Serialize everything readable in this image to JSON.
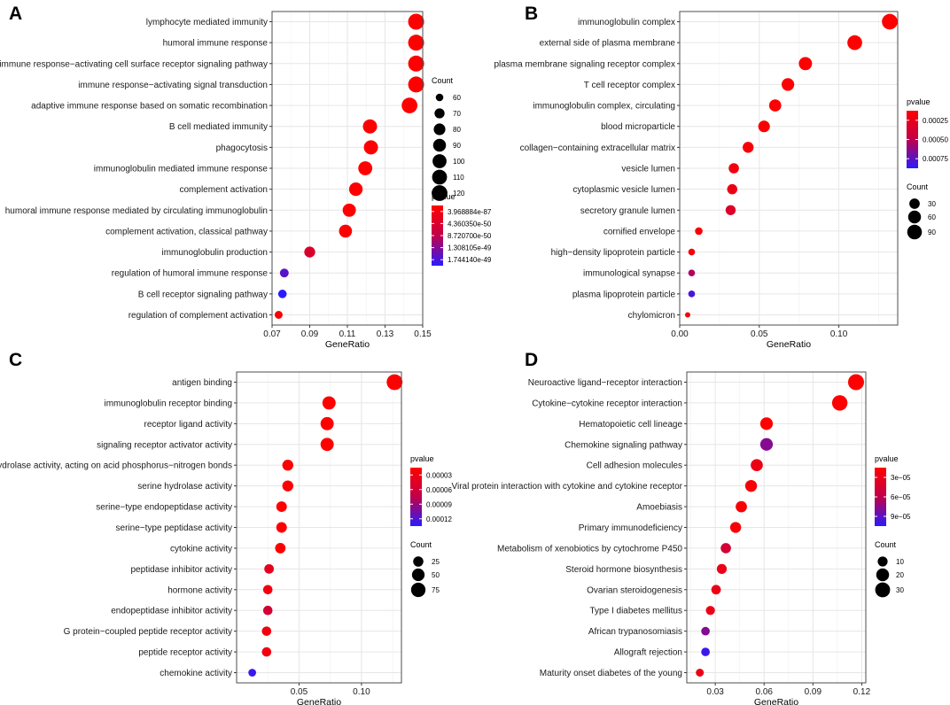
{
  "colors": {
    "low_p": "#ff0000",
    "high_p": "#0000ff",
    "grid_major": "#e6e6e6",
    "grid_minor": "#f3f3f3",
    "frame": "#4d4d4d"
  },
  "chart_data": [
    {
      "panel": "A",
      "type": "scatter",
      "xlabel": "GeneRatio",
      "xlim": [
        0.07,
        0.15
      ],
      "xticks": [
        0.07,
        0.09,
        0.11,
        0.13,
        0.15
      ],
      "xtick_labels": [
        "0.07",
        "0.09",
        "0.11",
        "0.13",
        "0.15"
      ],
      "size_legend": {
        "title": "Count",
        "values": [
          60,
          70,
          80,
          90,
          100,
          110,
          120
        ],
        "labels": [
          "60",
          "70",
          "80",
          "90",
          "100",
          "110",
          "120"
        ]
      },
      "color_legend": {
        "title": "pvalue",
        "labels": [
          "3.968884e-87",
          "4.360350e-50",
          "8.720700e-50",
          "1.308105e-49",
          "1.744140e-49"
        ]
      },
      "size_range": [
        57,
        122
      ],
      "terms": [
        {
          "label": "lymphocyte mediated immunity",
          "ratio": 0.1465,
          "count": 122,
          "color_t": 0.0
        },
        {
          "label": "humoral immune response",
          "ratio": 0.1465,
          "count": 122,
          "color_t": 0.0
        },
        {
          "label": "immune response−activating cell surface receptor signaling pathway",
          "ratio": 0.1465,
          "count": 122,
          "color_t": 0.0
        },
        {
          "label": "immune response−activating signal transduction",
          "ratio": 0.1465,
          "count": 122,
          "color_t": 0.0
        },
        {
          "label": "adaptive immune response based on somatic recombination",
          "ratio": 0.143,
          "count": 119,
          "color_t": 0.0
        },
        {
          "label": "B cell mediated immunity",
          "ratio": 0.122,
          "count": 102,
          "color_t": 0.0
        },
        {
          "label": "phagocytosis",
          "ratio": 0.1225,
          "count": 102,
          "color_t": 0.0
        },
        {
          "label": "immunoglobulin mediated immune response",
          "ratio": 0.1195,
          "count": 100,
          "color_t": 0.0
        },
        {
          "label": "complement activation",
          "ratio": 0.1145,
          "count": 96,
          "color_t": 0.0
        },
        {
          "label": "humoral immune response mediated by circulating immunoglobulin",
          "ratio": 0.111,
          "count": 93,
          "color_t": 0.0
        },
        {
          "label": "complement activation, classical pathway",
          "ratio": 0.109,
          "count": 91,
          "color_t": 0.0
        },
        {
          "label": "immunoglobulin production",
          "ratio": 0.09,
          "count": 75,
          "color_t": 0.3
        },
        {
          "label": "regulation of humoral immune response",
          "ratio": 0.0765,
          "count": 64,
          "color_t": 0.85
        },
        {
          "label": "B cell receptor signaling pathway",
          "ratio": 0.0755,
          "count": 63,
          "color_t": 1.0
        },
        {
          "label": "regulation of complement activation",
          "ratio": 0.0735,
          "count": 61,
          "color_t": 0.05
        }
      ]
    },
    {
      "panel": "B",
      "type": "scatter",
      "xlabel": "GeneRatio",
      "xlim": [
        0.0,
        0.137
      ],
      "xticks": [
        0.0,
        0.05,
        0.1
      ],
      "xtick_labels": [
        "0.00",
        "0.05",
        "0.10"
      ],
      "size_legend": {
        "title": "Count",
        "values": [
          30,
          60,
          90
        ],
        "labels": [
          "30",
          "60",
          "90"
        ]
      },
      "color_legend": {
        "title": "pvalue",
        "labels": [
          "0.00025",
          "0.00050",
          "0.00075"
        ]
      },
      "size_range": [
        5,
        115
      ],
      "terms": [
        {
          "label": "immunoglobulin complex",
          "ratio": 0.132,
          "count": 110,
          "color_t": 0.0
        },
        {
          "label": "external side of plasma membrane",
          "ratio": 0.11,
          "count": 92,
          "color_t": 0.0
        },
        {
          "label": "plasma membrane signaling receptor complex",
          "ratio": 0.079,
          "count": 66,
          "color_t": 0.0
        },
        {
          "label": "T cell receptor complex",
          "ratio": 0.068,
          "count": 57,
          "color_t": 0.02
        },
        {
          "label": "immunoglobulin complex, circulating",
          "ratio": 0.06,
          "count": 50,
          "color_t": 0.02
        },
        {
          "label": "blood microparticle",
          "ratio": 0.053,
          "count": 44,
          "color_t": 0.02
        },
        {
          "label": "collagen−containing extracellular matrix",
          "ratio": 0.043,
          "count": 36,
          "color_t": 0.05
        },
        {
          "label": "vesicle lumen",
          "ratio": 0.034,
          "count": 29,
          "color_t": 0.1
        },
        {
          "label": "cytoplasmic vesicle lumen",
          "ratio": 0.033,
          "count": 28,
          "color_t": 0.15
        },
        {
          "label": "secretory granule lumen",
          "ratio": 0.032,
          "count": 27,
          "color_t": 0.28
        },
        {
          "label": "cornified envelope",
          "ratio": 0.012,
          "count": 10,
          "color_t": 0.05
        },
        {
          "label": "high−density lipoprotein particle",
          "ratio": 0.0075,
          "count": 7,
          "color_t": 0.08
        },
        {
          "label": "immunological synapse",
          "ratio": 0.0075,
          "count": 7,
          "color_t": 0.55
        },
        {
          "label": "plasma lipoprotein particle",
          "ratio": 0.0075,
          "count": 7,
          "color_t": 0.9
        },
        {
          "label": "chylomicron",
          "ratio": 0.005,
          "count": 5,
          "color_t": 0.05
        }
      ]
    },
    {
      "panel": "C",
      "type": "scatter",
      "xlabel": "GeneRatio",
      "xlim": [
        0.0,
        0.132
      ],
      "xticks": [
        0.05,
        0.1
      ],
      "xtick_labels": [
        "0.05",
        "0.10"
      ],
      "size_legend": {
        "title": "Count",
        "values": [
          25,
          50,
          75
        ],
        "labels": [
          "25",
          "50",
          "75"
        ]
      },
      "color_legend": {
        "title": "pvalue",
        "labels": [
          "0.00003",
          "0.00006",
          "0.00009",
          "0.00012"
        ]
      },
      "size_range": [
        5,
        100
      ],
      "terms": [
        {
          "label": "antigen binding",
          "ratio": 0.1265,
          "count": 98,
          "color_t": 0.0
        },
        {
          "label": "immunoglobulin receptor binding",
          "ratio": 0.074,
          "count": 58,
          "color_t": 0.0
        },
        {
          "label": "receptor ligand activity",
          "ratio": 0.0725,
          "count": 57,
          "color_t": 0.0
        },
        {
          "label": "signaling receptor activator activity",
          "ratio": 0.0725,
          "count": 57,
          "color_t": 0.0
        },
        {
          "label": "hydrolase activity, acting on acid phosphorus−nitrogen bonds",
          "ratio": 0.041,
          "count": 32,
          "color_t": 0.0
        },
        {
          "label": "serine hydrolase activity",
          "ratio": 0.041,
          "count": 32,
          "color_t": 0.0
        },
        {
          "label": "serine−type endopeptidase activity",
          "ratio": 0.036,
          "count": 28,
          "color_t": 0.0
        },
        {
          "label": "serine−type peptidase activity",
          "ratio": 0.036,
          "count": 28,
          "color_t": 0.0
        },
        {
          "label": "cytokine activity",
          "ratio": 0.035,
          "count": 27,
          "color_t": 0.0
        },
        {
          "label": "peptidase inhibitor activity",
          "ratio": 0.026,
          "count": 20,
          "color_t": 0.2
        },
        {
          "label": "hormone activity",
          "ratio": 0.025,
          "count": 19,
          "color_t": 0.1
        },
        {
          "label": "endopeptidase inhibitor activity",
          "ratio": 0.025,
          "count": 19,
          "color_t": 0.35
        },
        {
          "label": "G protein−coupled peptide receptor activity",
          "ratio": 0.024,
          "count": 19,
          "color_t": 0.1
        },
        {
          "label": "peptide receptor activity",
          "ratio": 0.024,
          "count": 19,
          "color_t": 0.1
        },
        {
          "label": "chemokine activity",
          "ratio": 0.0125,
          "count": 10,
          "color_t": 0.95
        }
      ]
    },
    {
      "panel": "D",
      "type": "scatter",
      "xlabel": "GeneRatio",
      "xlim": [
        0.0125,
        0.1225
      ],
      "xticks": [
        0.03,
        0.06,
        0.09,
        0.12
      ],
      "xtick_labels": [
        "0.03",
        "0.06",
        "0.09",
        "0.12"
      ],
      "size_legend": {
        "title": "Count",
        "values": [
          10,
          20,
          30
        ],
        "labels": [
          "10",
          "20",
          "30"
        ]
      },
      "color_legend": {
        "title": "pvalue",
        "labels": [
          "3e−05",
          "6e−05",
          "9e−05"
        ]
      },
      "size_range": [
        4,
        36
      ],
      "terms": [
        {
          "label": "Neuroactive ligand−receptor interaction",
          "ratio": 0.1165,
          "count": 36,
          "color_t": 0.0
        },
        {
          "label": "Cytokine−cytokine receptor interaction",
          "ratio": 0.1065,
          "count": 33,
          "color_t": 0.0
        },
        {
          "label": "Hematopoietic cell lineage",
          "ratio": 0.0615,
          "count": 19,
          "color_t": 0.0
        },
        {
          "label": "Chemokine signaling pathway",
          "ratio": 0.0615,
          "count": 19,
          "color_t": 0.7
        },
        {
          "label": "Cell adhesion molecules",
          "ratio": 0.0555,
          "count": 17,
          "color_t": 0.15
        },
        {
          "label": "Viral protein interaction with cytokine and cytokine receptor",
          "ratio": 0.052,
          "count": 16,
          "color_t": 0.05
        },
        {
          "label": "Amoebiasis",
          "ratio": 0.046,
          "count": 14,
          "color_t": 0.05
        },
        {
          "label": "Primary immunodeficiency",
          "ratio": 0.0425,
          "count": 13,
          "color_t": 0.05
        },
        {
          "label": "Metabolism of xenobiotics by cytochrome P450",
          "ratio": 0.0365,
          "count": 11,
          "color_t": 0.35
        },
        {
          "label": "Steroid hormone biosynthesis",
          "ratio": 0.034,
          "count": 10,
          "color_t": 0.15
        },
        {
          "label": "Ovarian steroidogenesis",
          "ratio": 0.0305,
          "count": 9,
          "color_t": 0.15
        },
        {
          "label": "Type I diabetes mellitus",
          "ratio": 0.027,
          "count": 8,
          "color_t": 0.15
        },
        {
          "label": "African trypanosomiasis",
          "ratio": 0.024,
          "count": 7,
          "color_t": 0.7
        },
        {
          "label": "Allograft rejection",
          "ratio": 0.024,
          "count": 7,
          "color_t": 0.95
        },
        {
          "label": "Maturity onset diabetes of the young",
          "ratio": 0.0205,
          "count": 6,
          "color_t": 0.15
        }
      ]
    }
  ]
}
